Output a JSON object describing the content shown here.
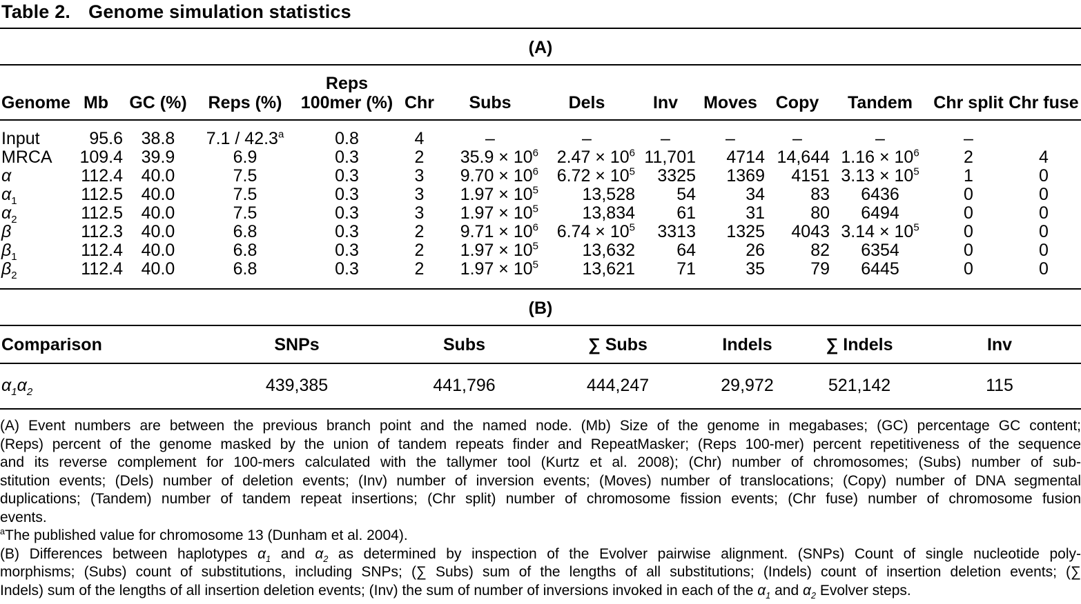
{
  "caption": {
    "label": "Table 2.",
    "title": "Genome simulation statistics"
  },
  "sections": {
    "a_label": "(A)",
    "b_label": "(B)"
  },
  "tableA": {
    "columns": [
      "Genome",
      "Mb",
      "GC (%)",
      "Reps (%)",
      "Reps\n100mer (%)",
      "Chr",
      "Subs",
      "Dels",
      "Inv",
      "Moves",
      "Copy",
      "Tandem",
      "Chr split",
      "Chr fuse"
    ],
    "rows": [
      [
        "Input",
        "95.6",
        "38.8",
        "7.1 / 42.3^{a}",
        "0.8",
        "4",
        "–",
        "–",
        "–",
        "–",
        "–",
        "–",
        "–",
        ""
      ],
      [
        "MRCA",
        "109.4",
        "39.9",
        "6.9",
        "0.3",
        "2",
        "35.9 × 10^{6}",
        "2.47 × 10^{6}",
        "11,701",
        "4714",
        "14,644",
        "1.16 × 10^{6}",
        "2",
        "4"
      ],
      [
        "*α*",
        "112.4",
        "40.0",
        "7.5",
        "0.3",
        "3",
        "9.70 × 10^{6}",
        "6.72 × 10^{5}",
        "3325",
        "1369",
        "4151",
        "3.13 × 10^{5}",
        "1",
        "0"
      ],
      [
        "*α*_{1}",
        "112.5",
        "40.0",
        "7.5",
        "0.3",
        "3",
        "1.97 × 10^{5}",
        "13,528",
        "54",
        "34",
        "83",
        "6436",
        "0",
        "0"
      ],
      [
        "*α*_{2}",
        "112.5",
        "40.0",
        "7.5",
        "0.3",
        "3",
        "1.97 × 10^{5}",
        "13,834",
        "61",
        "31",
        "80",
        "6494",
        "0",
        "0"
      ],
      [
        "*β*",
        "112.3",
        "40.0",
        "6.8",
        "0.3",
        "2",
        "9.71 × 10^{6}",
        "6.74 × 10^{5}",
        "3313",
        "1325",
        "4043",
        "3.14 × 10^{5}",
        "0",
        "0"
      ],
      [
        "*β*_{1}",
        "112.4",
        "40.0",
        "6.8",
        "0.3",
        "2",
        "1.97 × 10^{5}",
        "13,632",
        "64",
        "26",
        "82",
        "6354",
        "0",
        "0"
      ],
      [
        "*β*_{2}",
        "112.4",
        "40.0",
        "6.8",
        "0.3",
        "2",
        "1.97 × 10^{5}",
        "13,621",
        "71",
        "35",
        "79",
        "6445",
        "0",
        "0"
      ]
    ]
  },
  "tableB": {
    "columns": [
      "Comparison",
      "SNPs",
      "Subs",
      "∑ Subs",
      "Indels",
      "∑ Indels",
      "Inv"
    ],
    "rows": [
      [
        "*α*_{*1*}*α*_{*2*}",
        "439,385",
        "441,796",
        "444,247",
        "29,972",
        "521,142",
        "115"
      ]
    ]
  },
  "footnotes": {
    "paragraphs": [
      {
        "lines": [
          "(A) Event numbers are between the previous branch point and the named node. (Mb) Size of the genome in megabases; (GC) percentage GC content;",
          "(Reps) percent of the genome masked by the union of tandem repeats finder and RepeatMasker; (Reps 100-mer) percent repetitiveness of the sequence",
          "and its reverse complement for 100-mers calculated with the tallymer tool (Kurtz et al. 2008); (Chr) number of chromosomes; (Subs) number of sub-",
          "stitution events; (Dels) number of deletion events; (Inv) number of inversion events; (Moves) number of translocations; (Copy) number of DNA segmental",
          "duplications; (Tandem) number of tandem repeat insertions; (Chr split) number of chromosome fission events; (Chr fuse) number of chromosome fusion",
          "events."
        ]
      },
      {
        "lines": [
          "^{a}The published value for chromosome 13 (Dunham et al. 2004)."
        ]
      },
      {
        "lines": [
          "(B) Differences between haplotypes *α*_{*1*} and *α*_{*2*} as determined by inspection of the Evolver pairwise alignment. (SNPs) Count of single nucleotide poly-",
          "morphisms; (Subs) count of substitutions, including SNPs; (∑ Subs) sum of the lengths of all substitutions; (Indels) count of insertion deletion events; (∑",
          "Indels) sum of the lengths of all insertion deletion events; (Inv) the sum of number of inversions invoked in each of the *α*_{*1*} and *α*_{*2*} Evolver steps."
        ]
      }
    ]
  }
}
